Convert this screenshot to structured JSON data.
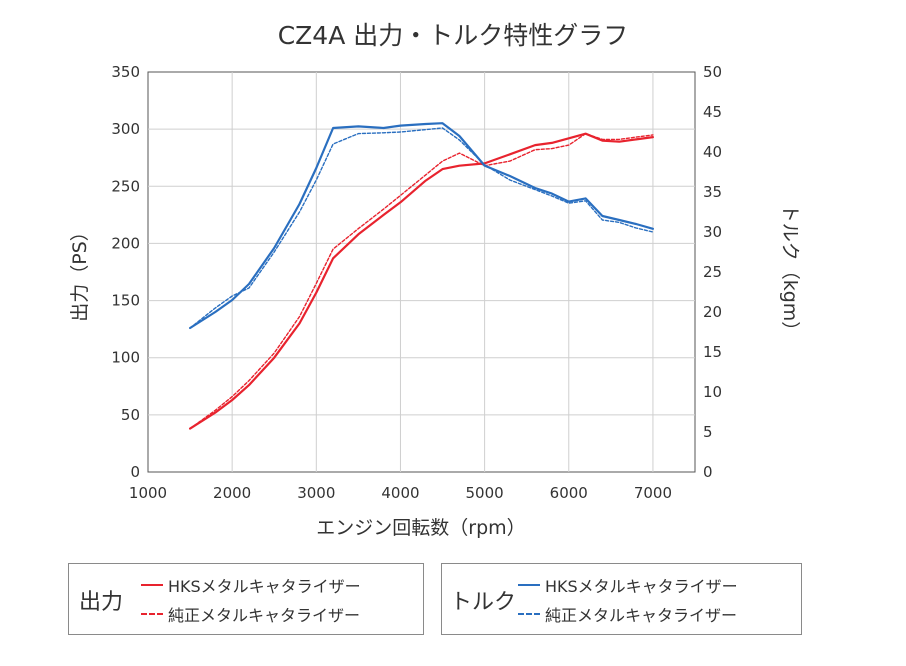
{
  "chart_data": {
    "type": "line",
    "title": "CZ4A 出力・トルク特性グラフ",
    "xlabel": "エンジン回転数（rpm）",
    "ylabel_left": "出力（PS）",
    "ylabel_right": "トルク（kgm）",
    "xlim": [
      1000,
      7500
    ],
    "ylim_left": [
      0,
      350
    ],
    "ylim_right": [
      0,
      50
    ],
    "x_ticks": [
      1000,
      2000,
      3000,
      4000,
      5000,
      6000,
      7000
    ],
    "y_ticks_left": [
      0,
      50,
      100,
      150,
      200,
      250,
      300,
      350
    ],
    "y_ticks_right": [
      0,
      5,
      10,
      15,
      20,
      25,
      30,
      35,
      40,
      45,
      50
    ],
    "grid": true,
    "colors": {
      "power": "#e8232e",
      "torque": "#2a6fc0",
      "grid": "#cfcfcf",
      "axis": "#555555"
    },
    "series": [
      {
        "name": "HKSメタルキャタライザー",
        "group": "出力",
        "axis": "left",
        "style": "solid",
        "color": "#e8232e",
        "x": [
          1500,
          1800,
          2000,
          2200,
          2500,
          2800,
          3000,
          3200,
          3500,
          3800,
          4000,
          4300,
          4500,
          4700,
          5000,
          5300,
          5600,
          5800,
          6000,
          6200,
          6400,
          6600,
          6800,
          7000
        ],
        "y": [
          38,
          52,
          63,
          76,
          100,
          130,
          157,
          187,
          208,
          225,
          236,
          255,
          265,
          268,
          270,
          278,
          286,
          288,
          292,
          296,
          290,
          289,
          291,
          293
        ]
      },
      {
        "name": "純正メタルキャタライザー",
        "group": "出力",
        "axis": "left",
        "style": "dashed",
        "color": "#e8232e",
        "x": [
          1500,
          1800,
          2000,
          2200,
          2500,
          2800,
          3000,
          3200,
          3500,
          3800,
          4000,
          4300,
          4500,
          4700,
          5000,
          5300,
          5600,
          5800,
          6000,
          6200,
          6400,
          6600,
          6800,
          7000
        ],
        "y": [
          38,
          54,
          66,
          80,
          104,
          136,
          165,
          195,
          213,
          230,
          242,
          260,
          272,
          279,
          268,
          272,
          282,
          283,
          286,
          296,
          291,
          291,
          293,
          295
        ]
      },
      {
        "name": "HKSメタルキャタライザー",
        "group": "トルク",
        "axis": "right",
        "style": "solid",
        "color": "#2a6fc0",
        "x": [
          1500,
          1800,
          2000,
          2200,
          2500,
          2800,
          3000,
          3200,
          3500,
          3800,
          4000,
          4300,
          4500,
          4700,
          5000,
          5300,
          5600,
          5800,
          6000,
          6200,
          6400,
          6600,
          6800,
          7000
        ],
        "y": [
          18,
          20,
          21.5,
          23.5,
          28,
          33.5,
          38,
          43,
          43.2,
          43,
          43.3,
          43.5,
          43.6,
          42,
          38.3,
          37,
          35.5,
          34.8,
          33.8,
          34.2,
          32,
          31.5,
          31,
          30.4
        ]
      },
      {
        "name": "純正メタルキャタライザー",
        "group": "トルク",
        "axis": "right",
        "style": "dashed",
        "color": "#2a6fc0",
        "x": [
          1500,
          1800,
          2000,
          2200,
          2500,
          2800,
          3000,
          3200,
          3500,
          3800,
          4000,
          4300,
          4500,
          4700,
          5000,
          5300,
          5600,
          5800,
          6000,
          6200,
          6400,
          6600,
          6800,
          7000
        ],
        "y": [
          18,
          20.5,
          22,
          23,
          27.5,
          32.5,
          36.5,
          41,
          42.3,
          42.4,
          42.5,
          42.8,
          43,
          41.5,
          38.4,
          36.5,
          35.3,
          34.5,
          33.6,
          33.9,
          31.5,
          31.2,
          30.5,
          30
        ]
      }
    ],
    "legend": {
      "power_title": "出力",
      "torque_title": "トルク",
      "power_entries": [
        "HKSメタルキャタライザー",
        "純正メタルキャタライザー"
      ],
      "torque_entries": [
        "HKSメタルキャタライザー",
        "純正メタルキャタライザー"
      ]
    }
  }
}
